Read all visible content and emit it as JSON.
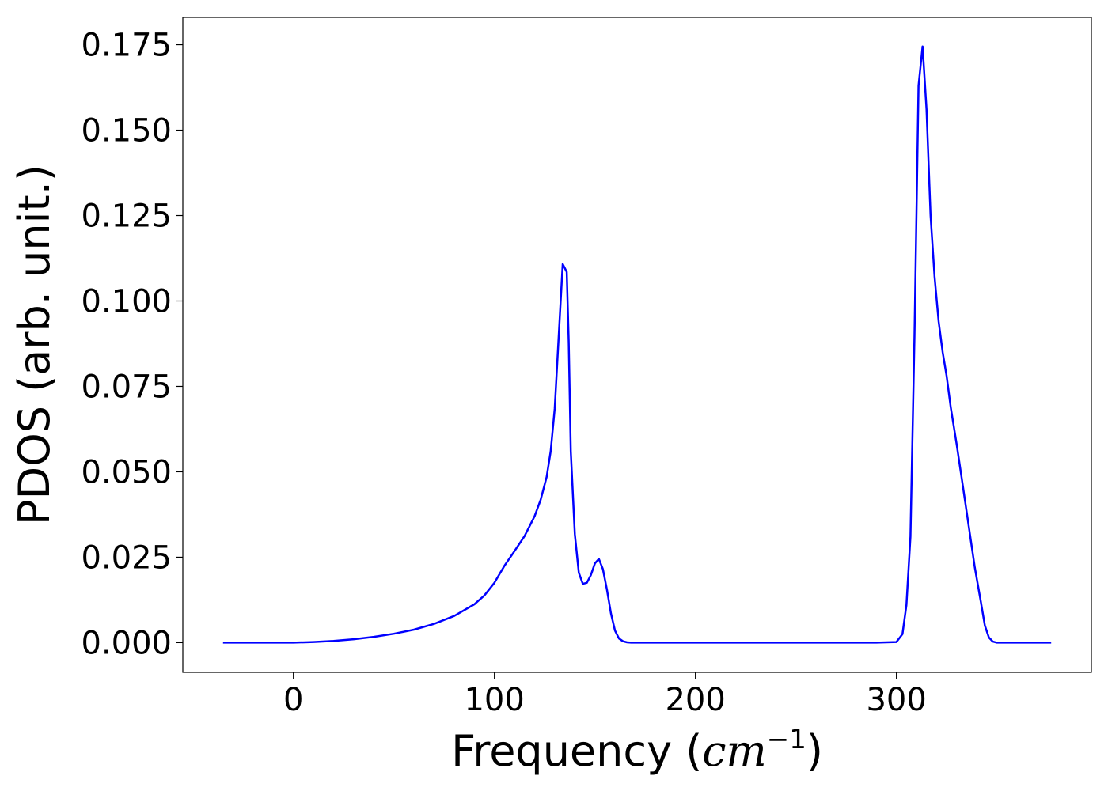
{
  "chart_data": {
    "type": "line",
    "title": "",
    "xlabel": {
      "prefix": "Frequency (",
      "math": "cm",
      "superscript": "−1",
      "suffix": ")"
    },
    "ylabel": "PDOS (arb. unit.)",
    "xlim": [
      -55,
      397
    ],
    "ylim": [
      -0.0087,
      0.183
    ],
    "xticks": [
      {
        "value": 0,
        "label": "0"
      },
      {
        "value": 100,
        "label": "100"
      },
      {
        "value": 200,
        "label": "200"
      },
      {
        "value": 300,
        "label": "300"
      }
    ],
    "yticks": [
      {
        "value": 0.0,
        "label": "0.000"
      },
      {
        "value": 0.025,
        "label": "0.025"
      },
      {
        "value": 0.05,
        "label": "0.050"
      },
      {
        "value": 0.075,
        "label": "0.075"
      },
      {
        "value": 0.1,
        "label": "0.100"
      },
      {
        "value": 0.125,
        "label": "0.125"
      },
      {
        "value": 0.15,
        "label": "0.150"
      },
      {
        "value": 0.175,
        "label": "0.175"
      }
    ],
    "grid": false,
    "legend": "none",
    "series": [
      {
        "color": "#0000ff",
        "x": [
          -35,
          0,
          10,
          20,
          30,
          40,
          50,
          60,
          70,
          80,
          90,
          95,
          100,
          105,
          110,
          115,
          120,
          123,
          126,
          128,
          130,
          132,
          134,
          136,
          137,
          138,
          140,
          142,
          144,
          146,
          148,
          150,
          152,
          154,
          156,
          158,
          160,
          162,
          164,
          166,
          168,
          170,
          172,
          175,
          180,
          200,
          250,
          290,
          300,
          303,
          305,
          307,
          309,
          311,
          313,
          315,
          317,
          319,
          321,
          323,
          325,
          327,
          330,
          333,
          336,
          339,
          342,
          344,
          346,
          348,
          350,
          352,
          355,
          360,
          377
        ],
        "y": [
          0,
          0,
          0.0002,
          0.0005,
          0.001,
          0.0017,
          0.0026,
          0.0038,
          0.0055,
          0.0078,
          0.0112,
          0.0138,
          0.0175,
          0.0225,
          0.0268,
          0.0312,
          0.037,
          0.0418,
          0.0485,
          0.056,
          0.0685,
          0.0895,
          0.1108,
          0.1085,
          0.088,
          0.056,
          0.0318,
          0.0205,
          0.0172,
          0.0175,
          0.0198,
          0.0232,
          0.0245,
          0.0215,
          0.0155,
          0.0085,
          0.0035,
          0.0012,
          0.0004,
          0.0001,
          0,
          0,
          0,
          0,
          0,
          0,
          0,
          0,
          0.0002,
          0.0025,
          0.011,
          0.031,
          0.09,
          0.163,
          0.1745,
          0.156,
          0.125,
          0.107,
          0.094,
          0.085,
          0.078,
          0.069,
          0.058,
          0.046,
          0.034,
          0.022,
          0.012,
          0.005,
          0.0015,
          0.0003,
          0,
          0,
          0,
          0,
          0
        ]
      }
    ]
  }
}
